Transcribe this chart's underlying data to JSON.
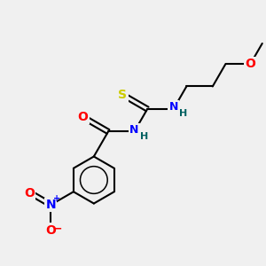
{
  "background_color": "#f0f0f0",
  "bond_color": "#000000",
  "atom_colors": {
    "O": "#ff0000",
    "N": "#0000ff",
    "S": "#cccc00",
    "H": "#006060",
    "C": "#000000"
  },
  "figsize": [
    3.0,
    3.0
  ],
  "dpi": 100
}
